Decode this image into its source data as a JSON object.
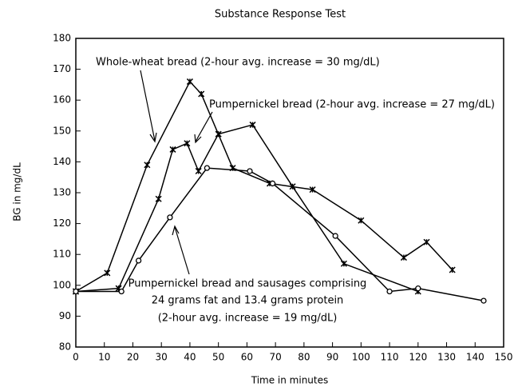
{
  "chart_data": {
    "type": "line",
    "title": "Substance Response Test",
    "x_label": "Time in minutes",
    "y_label": "BG in mg/dL",
    "xlim": [
      0,
      150
    ],
    "xticks": [
      0,
      10,
      20,
      30,
      40,
      50,
      60,
      70,
      80,
      90,
      100,
      110,
      120,
      130,
      140,
      150
    ],
    "ylim": [
      80,
      180
    ],
    "yticks": [
      80,
      90,
      100,
      110,
      120,
      130,
      140,
      150,
      160,
      170,
      180
    ],
    "series": [
      {
        "name": "Whole-wheat bread",
        "color": "#000000",
        "marker": "star",
        "x": [
          0,
          11,
          25,
          40,
          44,
          55,
          68,
          83,
          100,
          115,
          123,
          132
        ],
        "values": [
          98,
          104,
          139,
          166,
          162,
          138,
          133,
          131,
          121,
          109,
          114,
          105
        ]
      },
      {
        "name": "Pumpernickel bread",
        "color": "#000000",
        "marker": "star",
        "x": [
          0,
          15,
          29,
          34,
          39,
          43,
          50,
          62,
          76,
          94,
          120
        ],
        "values": [
          98,
          99,
          128,
          144,
          146,
          137,
          149,
          152,
          132,
          107,
          98
        ]
      },
      {
        "name": "Pumpernickel bread and sausages",
        "color": "#000000",
        "marker": "circle",
        "x": [
          0,
          16,
          22,
          33,
          46,
          61,
          69,
          91,
          110,
          120,
          143
        ],
        "values": [
          98,
          98,
          108,
          122,
          138,
          137,
          133,
          116,
          98,
          99,
          95
        ]
      }
    ],
    "annotations": [
      [
        "Whole-wheat bread (2-hour avg. increase = 30 mg/dL)"
      ],
      [
        "Pumpernickel bread (2-hour avg. increase = 27 mg/dL)"
      ],
      [
        "Pumpernickel bread and sausages comprising",
        "24 grams fat and 13.4 grams protein",
        "(2-hour avg. increase = 19 mg/dL)"
      ]
    ]
  }
}
